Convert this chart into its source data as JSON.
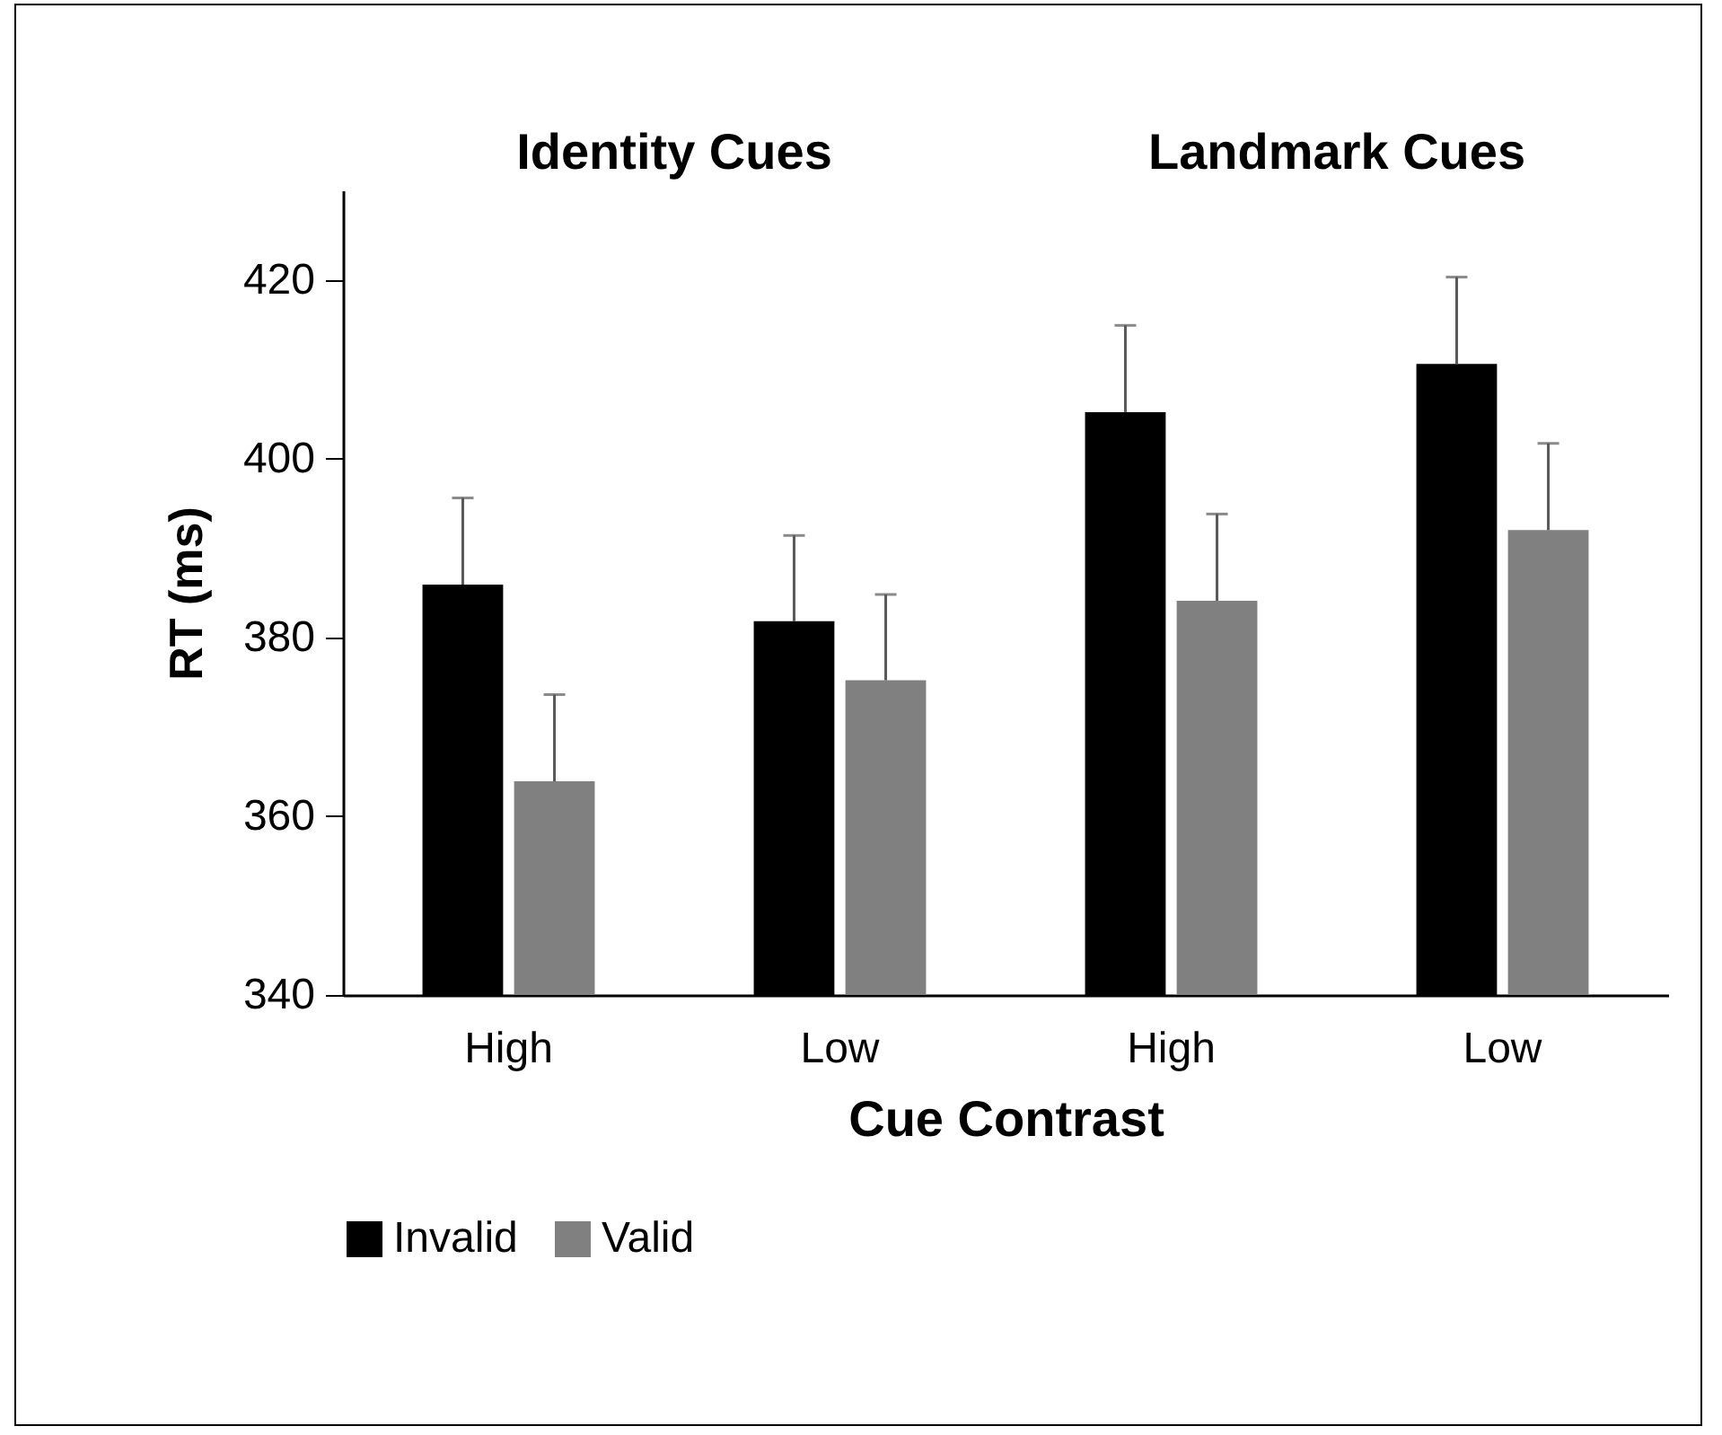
{
  "chart_data": {
    "type": "bar",
    "xlabel": "Cue Contrast",
    "ylabel": "RT (ms)",
    "annotations": [
      "Identity Cues",
      "Landmark Cues"
    ],
    "categories": [
      "High",
      "Low",
      "High",
      "Low"
    ],
    "series": [
      {
        "name": "Invalid",
        "color": "#000000",
        "values": [
          385.9,
          381.8,
          405.2,
          410.6
        ],
        "errors": [
          [
            385.9,
            395.6
          ],
          [
            381.8,
            391.4
          ],
          [
            405.2,
            414.9
          ],
          [
            410.6,
            420.3
          ]
        ]
      },
      {
        "name": "Valid",
        "color": "#808080",
        "values": [
          363.9,
          375.2,
          384.1,
          392.0
        ],
        "errors": [
          [
            363.9,
            373.6
          ],
          [
            375.2,
            384.8
          ],
          [
            384.1,
            393.8
          ],
          [
            392.0,
            401.7
          ]
        ]
      }
    ],
    "ylim": [
      340,
      430
    ],
    "yticks": [
      340,
      360,
      380,
      400,
      420
    ],
    "grid": false,
    "legend": "bottom"
  }
}
